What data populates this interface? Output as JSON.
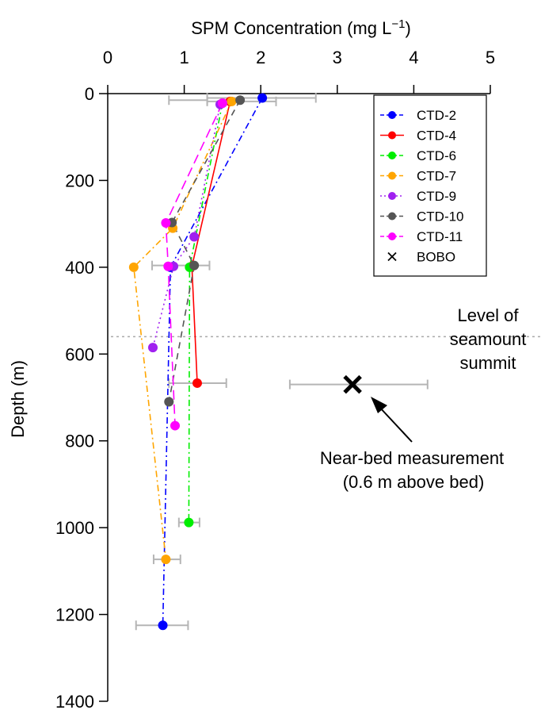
{
  "chart_data": {
    "type": "scatter",
    "title": "SPM Concentration (mg L⁻¹)",
    "title_main": "SPM Concentration (mg L",
    "title_sup": "−1",
    "title_close": ")",
    "xlabel": "SPM Concentration (mg L⁻¹)",
    "ylabel": "Depth (m)",
    "xlim": [
      0,
      5
    ],
    "ylim": [
      0,
      1400
    ],
    "y_reversed": true,
    "x_axis_position": "top",
    "x_ticks": [
      0,
      1,
      2,
      3,
      4,
      5
    ],
    "y_ticks": [
      0,
      200,
      400,
      600,
      800,
      1000,
      1200,
      1400
    ],
    "grid": false,
    "legend_position": "top-right",
    "series": [
      {
        "name": "CTD-2",
        "color": "#0000ff",
        "dash": "dashdot",
        "points": [
          [
            2.02,
            10
          ],
          [
            0.82,
            400
          ],
          [
            0.72,
            1225
          ]
        ],
        "errors": [
          [
            1.3,
            2.72,
            10
          ],
          [
            0.37,
            1.05,
            1225
          ]
        ]
      },
      {
        "name": "CTD-4",
        "color": "#ff0000",
        "dash": "solid",
        "points": [
          [
            1.6,
            18
          ],
          [
            1.1,
            398
          ],
          [
            1.17,
            667
          ]
        ],
        "errors": [
          [
            1.3,
            2.2,
            18
          ],
          [
            0.8,
            1.55,
            667
          ]
        ]
      },
      {
        "name": "CTD-6",
        "color": "#00ee00",
        "dash": "dashdot",
        "points": [
          [
            1.5,
            22
          ],
          [
            1.07,
            400
          ],
          [
            1.06,
            988
          ]
        ],
        "errors": [
          [
            0.93,
            1.2,
            988
          ]
        ]
      },
      {
        "name": "CTD-7",
        "color": "#ffa500",
        "dash": "dashdot",
        "points": [
          [
            1.62,
            18
          ],
          [
            0.85,
            310
          ],
          [
            0.34,
            400
          ],
          [
            0.76,
            1073
          ]
        ],
        "errors": [
          [
            0.6,
            0.95,
            1073
          ]
        ]
      },
      {
        "name": "CTD-9",
        "color": "#a020f0",
        "dash": "dotted",
        "points": [
          [
            1.47,
            25
          ],
          [
            1.13,
            330
          ],
          [
            0.86,
            398
          ],
          [
            0.59,
            585
          ]
        ],
        "errors": []
      },
      {
        "name": "CTD-10",
        "color": "#555555",
        "dash": "dashed",
        "points": [
          [
            1.73,
            15
          ],
          [
            0.84,
            297
          ],
          [
            1.13,
            396
          ],
          [
            0.8,
            710
          ]
        ],
        "errors": [
          [
            0.8,
            1.3,
            15
          ],
          [
            0.58,
            1.33,
            396
          ]
        ]
      },
      {
        "name": "CTD-11",
        "color": "#ff00ff",
        "dash": "longdash",
        "points": [
          [
            1.5,
            22
          ],
          [
            0.76,
            298
          ],
          [
            0.79,
            398
          ],
          [
            0.88,
            765
          ]
        ],
        "errors": []
      }
    ],
    "bobo": {
      "name": "BOBO",
      "x": 3.2,
      "y": 670,
      "xerr": [
        2.38,
        4.18
      ]
    },
    "summit_depth": 560,
    "annotations": {
      "summit_line1": "Level of",
      "summit_line2": "seamount",
      "summit_line3": "summit",
      "nearbed_line1": "Near-bed measurement",
      "nearbed_line2": "(0.6 m above bed)"
    }
  },
  "colors": {
    "errorbar": "#b5b5b5",
    "summit_line": "#aaaaaa",
    "axis": "#000000"
  }
}
